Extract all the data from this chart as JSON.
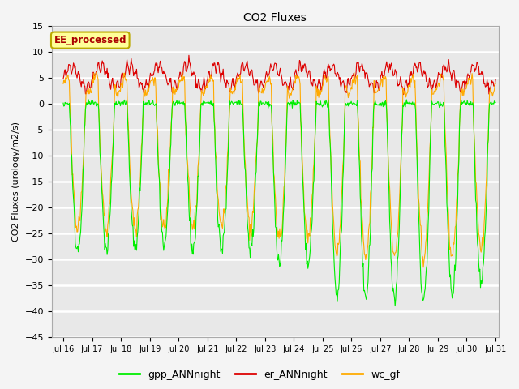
{
  "title": "CO2 Fluxes",
  "ylabel": "CO2 Fluxes (urology/m2/s)",
  "ylim": [
    -45,
    15
  ],
  "yticks": [
    -45,
    -40,
    -35,
    -30,
    -25,
    -20,
    -15,
    -10,
    -5,
    0,
    5,
    10,
    15
  ],
  "start_day": 16,
  "end_day": 31,
  "points_per_day": 48,
  "annotation_text": "EE_processed",
  "colors": {
    "gpp_ANNnight": "#00ee00",
    "er_ANNnight": "#dd0000",
    "wc_gf": "#ffaa00"
  },
  "background_color": "#e8e8e8",
  "grid_color": "#ffffff",
  "annotation_bg": "#ffff99",
  "annotation_border": "#bbaa00",
  "fig_bg": "#f4f4f4"
}
